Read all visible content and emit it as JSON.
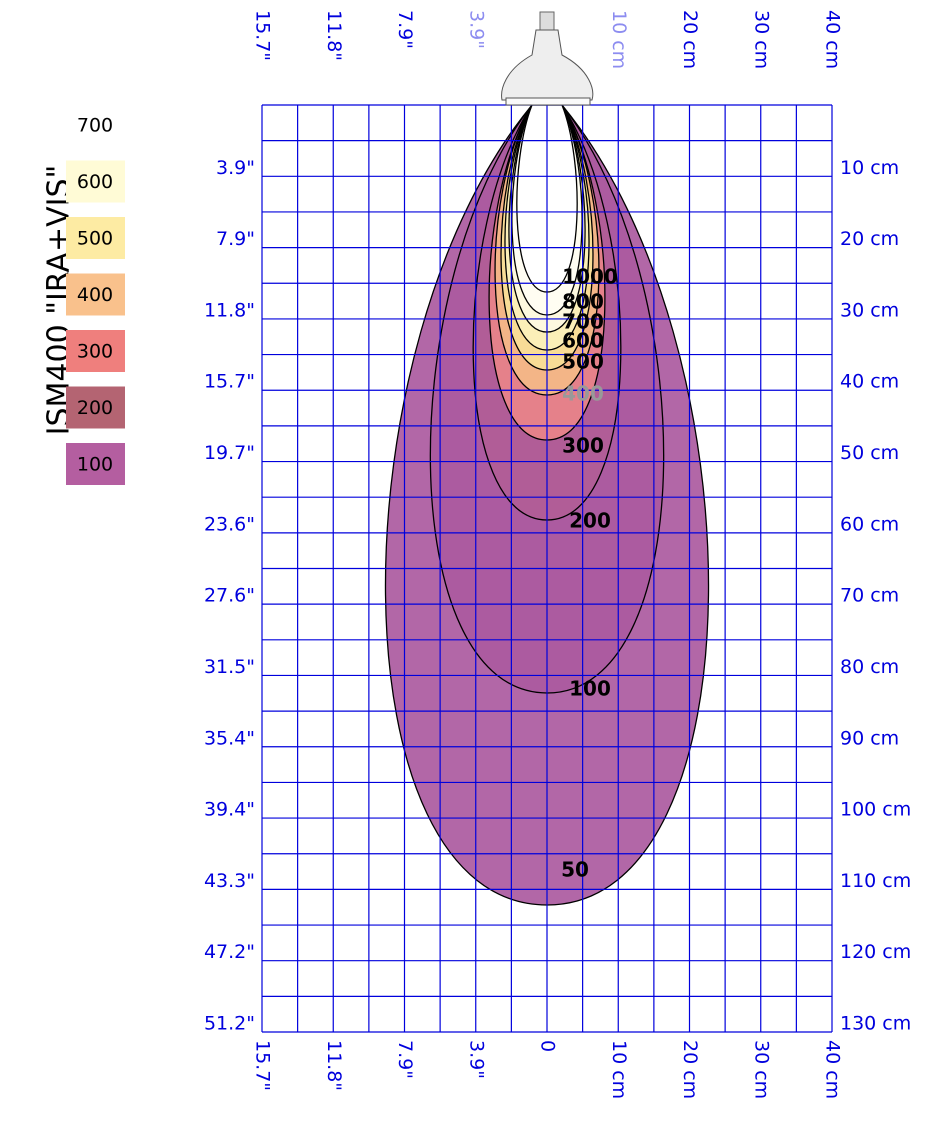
{
  "title": "ISM400 \"IRA+VIS\"",
  "legend": [
    {
      "label": "700",
      "color": "#ffffff"
    },
    {
      "label": "600",
      "color": "#fffbd6"
    },
    {
      "label": "500",
      "color": "#fdeba3"
    },
    {
      "label": "400",
      "color": "#f9c18c"
    },
    {
      "label": "300",
      "color": "#ef7f7d"
    },
    {
      "label": "200",
      "color": "#b46472"
    },
    {
      "label": "100",
      "color": "#b45ea0"
    }
  ],
  "top_labels": [
    "15.7\"",
    "11.8\"",
    "7.9\"",
    "3.9\"",
    "10 cm",
    "20 cm",
    "30 cm",
    "40 cm"
  ],
  "bottom_labels": [
    "15.7\"",
    "11.8\"",
    "7.9\"",
    "3.9\"",
    "0",
    "10 cm",
    "20 cm",
    "30 cm",
    "40 cm"
  ],
  "left_labels": [
    "3.9\"",
    "7.9\"",
    "11.8\"",
    "15.7\"",
    "19.7\"",
    "23.6\"",
    "27.6\"",
    "31.5\"",
    "35.4\"",
    "39.4\"",
    "43.3\"",
    "47.2\"",
    "51.2\""
  ],
  "right_labels": [
    "10 cm",
    "20 cm",
    "30 cm",
    "40 cm",
    "50 cm",
    "60 cm",
    "70 cm",
    "80 cm",
    "90 cm",
    "100 cm",
    "110 cm",
    "120 cm",
    "130 cm"
  ],
  "contours": [
    "50",
    "100",
    "200",
    "300",
    "400",
    "500",
    "600",
    "700",
    "800",
    "1000"
  ]
}
